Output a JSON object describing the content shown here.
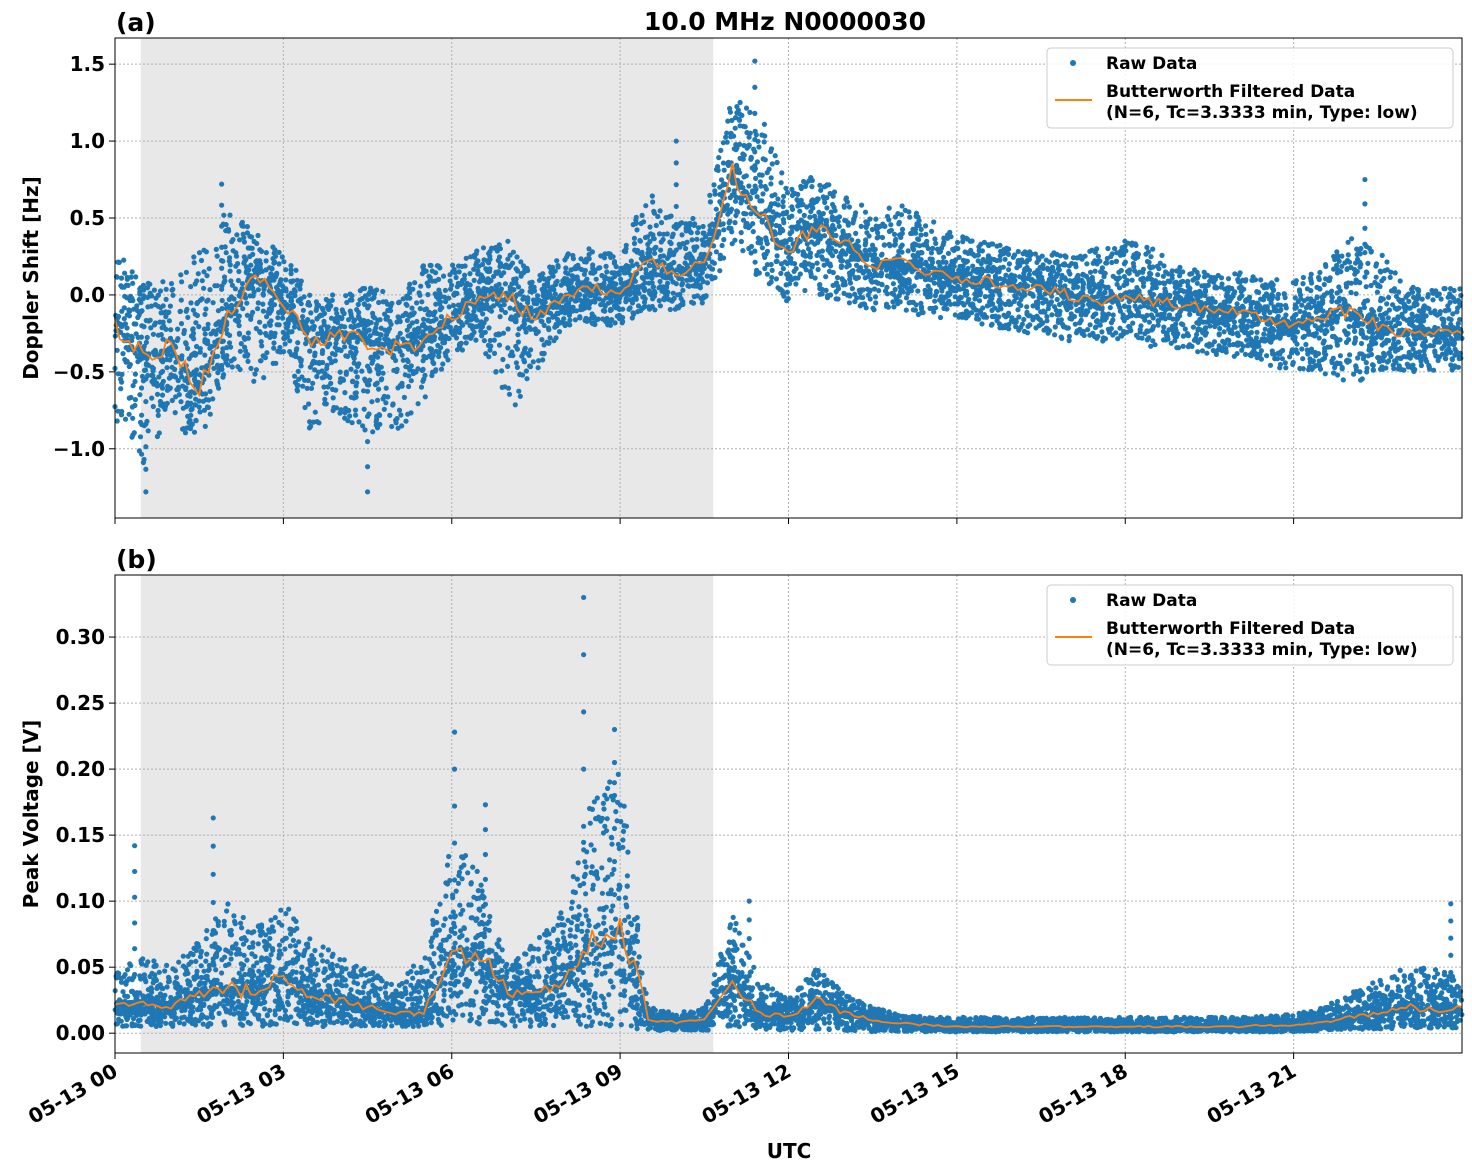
{
  "figure_title": "10.0 MHz N0000030",
  "x_label": "UTC",
  "x_tick_labels": [
    "05-13 00",
    "05-13 03",
    "05-13 06",
    "05-13 09",
    "05-13 12",
    "05-13 15",
    "05-13 18",
    "05-13 21"
  ],
  "x_tick_hours": [
    0,
    3,
    6,
    9,
    12,
    15,
    18,
    21
  ],
  "x_range_hours": [
    0,
    24
  ],
  "shaded_interval_hours": [
    0.46,
    10.66
  ],
  "colors": {
    "raw": "#1f77b4",
    "filtered": "#ff7f0e",
    "shade": "#e8e8e8",
    "grid": "#b0b0b0"
  },
  "chart_data": [
    {
      "type": "scatter+line",
      "panel_label": "(a)",
      "ylabel": "Doppler Shift [Hz]",
      "ylim": [
        -1.45,
        1.67
      ],
      "y_ticks": [
        -1.0,
        -0.5,
        0.0,
        0.5,
        1.0,
        1.5
      ],
      "y_tick_labels": [
        "−1.0",
        "−0.5",
        "0.0",
        "0.5",
        "1.0",
        "1.5"
      ],
      "grid": true,
      "legend_position": "top-right",
      "legend": [
        "Raw Data",
        "Butterworth Filtered Data",
        "(N=6, Tc=3.3333 min, Type: low)"
      ],
      "x_hours": [
        0,
        0.5,
        1,
        1.5,
        2,
        2.5,
        3,
        3.5,
        4,
        4.5,
        5,
        5.5,
        6,
        6.5,
        7,
        7.5,
        8,
        8.5,
        9,
        9.5,
        10,
        10.5,
        11,
        11.5,
        12,
        12.5,
        13,
        13.5,
        14,
        14.5,
        15,
        15.5,
        16,
        16.5,
        17,
        17.5,
        18,
        18.5,
        19,
        19.5,
        20,
        20.5,
        21,
        21.5,
        22,
        22.5,
        23,
        23.5,
        24
      ],
      "filtered": [
        -0.2,
        -0.4,
        -0.35,
        -0.6,
        -0.1,
        0.1,
        -0.05,
        -0.3,
        -0.25,
        -0.3,
        -0.35,
        -0.3,
        -0.15,
        0.0,
        0.0,
        -0.15,
        0.0,
        0.05,
        0.0,
        0.25,
        0.15,
        0.2,
        0.8,
        0.5,
        0.3,
        0.45,
        0.35,
        0.2,
        0.2,
        0.15,
        0.1,
        0.1,
        0.05,
        0.05,
        0.0,
        -0.05,
        0.0,
        -0.05,
        -0.05,
        -0.1,
        -0.1,
        -0.15,
        -0.2,
        -0.15,
        -0.1,
        -0.2,
        -0.25,
        -0.25,
        -0.25
      ],
      "raw_max": [
        0.3,
        0.1,
        0.1,
        0.3,
        0.6,
        0.4,
        0.3,
        0.0,
        0.0,
        0.05,
        0.0,
        0.2,
        0.2,
        0.3,
        0.35,
        0.1,
        0.3,
        0.3,
        0.25,
        0.7,
        0.5,
        0.5,
        1.3,
        1.2,
        0.7,
        0.8,
        0.65,
        0.55,
        0.6,
        0.5,
        0.4,
        0.35,
        0.3,
        0.3,
        0.25,
        0.3,
        0.35,
        0.3,
        0.2,
        0.15,
        0.15,
        0.1,
        0.1,
        0.2,
        0.4,
        0.3,
        0.05,
        0.05,
        0.05
      ],
      "raw_min": [
        -0.8,
        -1.1,
        -0.8,
        -1.0,
        -0.5,
        -0.6,
        -0.4,
        -0.9,
        -0.8,
        -0.9,
        -0.9,
        -0.7,
        -0.4,
        -0.3,
        -0.8,
        -0.5,
        -0.2,
        -0.2,
        -0.2,
        -0.1,
        -0.1,
        -0.05,
        0.3,
        0.1,
        -0.05,
        0.0,
        -0.05,
        -0.1,
        -0.1,
        -0.15,
        -0.15,
        -0.2,
        -0.25,
        -0.25,
        -0.3,
        -0.3,
        -0.3,
        -0.35,
        -0.35,
        -0.4,
        -0.4,
        -0.45,
        -0.5,
        -0.5,
        -0.6,
        -0.5,
        -0.5,
        -0.5,
        -0.5
      ],
      "raw_outliers": [
        [
          11.4,
          1.52
        ],
        [
          22.27,
          0.75
        ],
        [
          0.55,
          -1.28
        ],
        [
          4.5,
          -1.28
        ],
        [
          10.0,
          1.0
        ],
        [
          1.9,
          0.72
        ]
      ]
    },
    {
      "type": "scatter+line",
      "panel_label": "(b)",
      "ylabel": "Peak Voltage [V]",
      "ylim": [
        -0.015,
        0.347
      ],
      "y_ticks": [
        0.0,
        0.05,
        0.1,
        0.15,
        0.2,
        0.25,
        0.3
      ],
      "y_tick_labels": [
        "0.00",
        "0.05",
        "0.10",
        "0.15",
        "0.20",
        "0.25",
        "0.30"
      ],
      "grid": true,
      "legend_position": "top-right",
      "legend": [
        "Raw Data",
        "Butterworth Filtered Data",
        "(N=6, Tc=3.3333 min, Type: low)"
      ],
      "x_hours": [
        0,
        0.5,
        1,
        1.5,
        2,
        2.5,
        3,
        3.5,
        4,
        4.5,
        5,
        5.5,
        6,
        6.5,
        7,
        7.5,
        8,
        8.5,
        9,
        9.5,
        10,
        10.5,
        11,
        11.5,
        12,
        12.5,
        13,
        13.5,
        14,
        14.5,
        15,
        15.5,
        16,
        16.5,
        17,
        17.5,
        18,
        18.5,
        19,
        19.5,
        20,
        20.5,
        21,
        21.5,
        22,
        22.5,
        23,
        23.5,
        24
      ],
      "filtered": [
        0.02,
        0.025,
        0.02,
        0.03,
        0.035,
        0.03,
        0.045,
        0.03,
        0.025,
        0.02,
        0.015,
        0.015,
        0.06,
        0.06,
        0.03,
        0.03,
        0.04,
        0.07,
        0.08,
        0.01,
        0.008,
        0.01,
        0.04,
        0.015,
        0.012,
        0.025,
        0.015,
        0.01,
        0.008,
        0.006,
        0.005,
        0.005,
        0.005,
        0.005,
        0.005,
        0.005,
        0.005,
        0.005,
        0.005,
        0.005,
        0.005,
        0.006,
        0.006,
        0.008,
        0.012,
        0.015,
        0.02,
        0.018,
        0.02
      ],
      "raw_max": [
        0.045,
        0.06,
        0.05,
        0.07,
        0.1,
        0.08,
        0.1,
        0.07,
        0.06,
        0.05,
        0.035,
        0.06,
        0.15,
        0.12,
        0.05,
        0.07,
        0.1,
        0.18,
        0.2,
        0.02,
        0.015,
        0.02,
        0.09,
        0.04,
        0.025,
        0.05,
        0.03,
        0.02,
        0.015,
        0.012,
        0.012,
        0.012,
        0.012,
        0.012,
        0.012,
        0.012,
        0.012,
        0.012,
        0.012,
        0.012,
        0.012,
        0.013,
        0.015,
        0.02,
        0.03,
        0.04,
        0.05,
        0.05,
        0.05
      ],
      "raw_min": [
        0.005,
        0.005,
        0.005,
        0.005,
        0.005,
        0.005,
        0.005,
        0.005,
        0.005,
        0.005,
        0.005,
        0.005,
        0.005,
        0.005,
        0.005,
        0.005,
        0.005,
        0.005,
        0.005,
        0.002,
        0.002,
        0.002,
        0.005,
        0.003,
        0.002,
        0.003,
        0.002,
        0.001,
        0.001,
        0.001,
        0.001,
        0.001,
        0.001,
        0.001,
        0.001,
        0.001,
        0.001,
        0.001,
        0.001,
        0.001,
        0.001,
        0.001,
        0.001,
        0.002,
        0.003,
        0.003,
        0.004,
        0.004,
        0.004
      ],
      "raw_outliers": [
        [
          8.35,
          0.33
        ],
        [
          6.05,
          0.228
        ],
        [
          8.9,
          0.23
        ],
        [
          1.75,
          0.163
        ],
        [
          0.35,
          0.142
        ],
        [
          23.8,
          0.098
        ],
        [
          6.6,
          0.173
        ],
        [
          11.3,
          0.1
        ]
      ]
    }
  ]
}
